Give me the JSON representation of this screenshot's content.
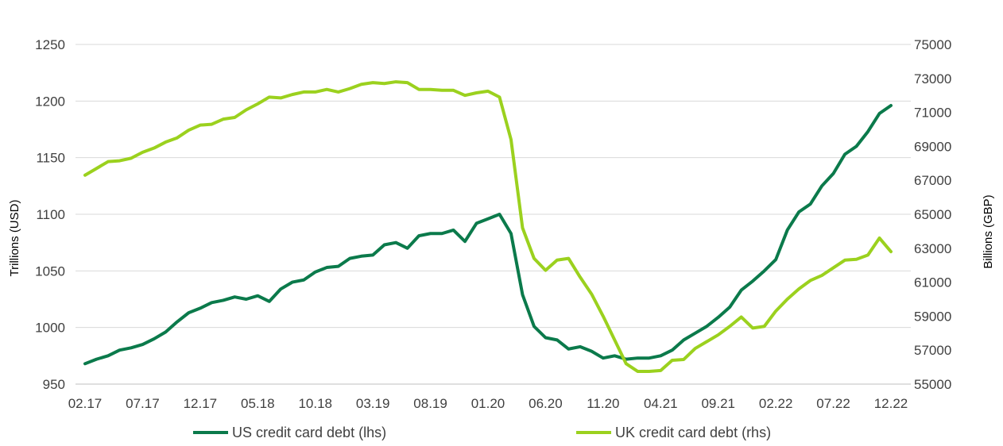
{
  "colors": {
    "us": "#0b7a4b",
    "uk": "#9bd11e",
    "grid": "#d9d9d9",
    "text": "#404040"
  },
  "chart_data": {
    "type": "line",
    "x": [
      "02.17",
      "03.17",
      "04.17",
      "05.17",
      "06.17",
      "07.17",
      "08.17",
      "09.17",
      "10.17",
      "11.17",
      "12.17",
      "01.18",
      "02.18",
      "03.18",
      "04.18",
      "05.18",
      "06.18",
      "07.18",
      "08.18",
      "09.18",
      "10.18",
      "11.18",
      "12.18",
      "01.19",
      "02.19",
      "03.19",
      "04.19",
      "05.19",
      "06.19",
      "07.19",
      "08.19",
      "09.19",
      "10.19",
      "11.19",
      "12.19",
      "01.20",
      "02.20",
      "03.20",
      "04.20",
      "05.20",
      "06.20",
      "07.20",
      "08.20",
      "09.20",
      "10.20",
      "11.20",
      "12.20",
      "01.21",
      "02.21",
      "03.21",
      "04.21",
      "05.21",
      "06.21",
      "07.21",
      "08.21",
      "09.21",
      "10.21",
      "11.21",
      "12.21",
      "01.22",
      "02.22",
      "03.22",
      "04.22",
      "05.22",
      "06.22",
      "07.22",
      "08.22",
      "09.22",
      "10.22",
      "11.22",
      "12.22"
    ],
    "x_tick_labels": [
      "02.17",
      "07.17",
      "12.17",
      "05.18",
      "10.18",
      "03.19",
      "08.19",
      "01.20",
      "06.20",
      "11.20",
      "04.21",
      "09.21",
      "02.22",
      "07.22",
      "12.22"
    ],
    "ylabel_left": "Trillions (USD)",
    "ylabel_right": "Billions (GBP)",
    "ylim_left": [
      950,
      1250
    ],
    "ylim_right": [
      55000,
      75000
    ],
    "yticks_left": [
      "950",
      "1000",
      "1050",
      "1100",
      "1150",
      "1200",
      "1250"
    ],
    "yticks_right": [
      "55000",
      "57000",
      "59000",
      "61000",
      "63000",
      "65000",
      "67000",
      "69000",
      "71000",
      "73000",
      "75000"
    ],
    "grid": "horizontal",
    "legend_position": "bottom",
    "series": [
      {
        "name": "US credit card debt (lhs)",
        "axis": "left",
        "values": [
          968,
          972,
          975,
          980,
          982,
          985,
          990,
          996,
          1005,
          1013,
          1017,
          1022,
          1024,
          1027,
          1025,
          1028,
          1023,
          1034,
          1040,
          1042,
          1049,
          1053,
          1054,
          1061,
          1063,
          1064,
          1073,
          1075,
          1070,
          1081,
          1083,
          1083,
          1086,
          1076,
          1092,
          1096,
          1100,
          1083,
          1029,
          1001,
          991,
          989,
          981,
          983,
          979,
          973,
          975,
          972,
          973,
          973,
          975,
          980,
          989,
          995,
          1001,
          1009,
          1018,
          1033,
          1041,
          1050,
          1060,
          1086,
          1102,
          1109,
          1125,
          1136,
          1153,
          1160,
          1173,
          1189,
          1196
        ]
      },
      {
        "name": "UK credit card debt (rhs)",
        "axis": "right",
        "values": [
          67300,
          67700,
          68100,
          68150,
          68300,
          68650,
          68900,
          69250,
          69500,
          69950,
          70250,
          70300,
          70600,
          70700,
          71150,
          71500,
          71900,
          71850,
          72050,
          72200,
          72200,
          72350,
          72200,
          72400,
          72650,
          72750,
          72700,
          72800,
          72750,
          72350,
          72350,
          72300,
          72300,
          72000,
          72150,
          72250,
          71900,
          69400,
          64200,
          62400,
          61700,
          62300,
          62400,
          61300,
          60300,
          59000,
          57600,
          56200,
          55750,
          55750,
          55800,
          56400,
          56450,
          57100,
          57500,
          57900,
          58400,
          58950,
          58300,
          58400,
          59300,
          60000,
          60600,
          61100,
          61400,
          61850,
          62300,
          62350,
          62600,
          63600,
          62800
        ]
      }
    ]
  }
}
